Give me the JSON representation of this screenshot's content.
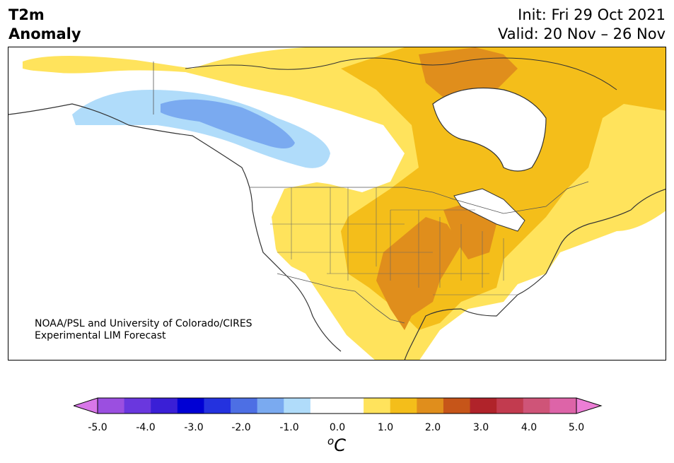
{
  "title": {
    "line1": "T2m",
    "line2": "Anomaly"
  },
  "dates": {
    "init": "Init: Fri 29 Oct 2021",
    "valid": "Valid: 20 Nov – 26 Nov"
  },
  "credit": {
    "line1": "NOAA/PSL and University of Colorado/CIRES",
    "line2": "Experimental LIM Forecast"
  },
  "colorbar": {
    "ticks": [
      "-5.0",
      "-4.0",
      "-3.0",
      "-2.0",
      "-1.0",
      "0.0",
      "1.0",
      "2.0",
      "3.0",
      "4.0",
      "5.0"
    ],
    "unit_sup": "o",
    "unit": "C",
    "colors": [
      "#d877e8",
      "#9b4fe0",
      "#6a37de",
      "#3a1fd6",
      "#0000d4",
      "#2432df",
      "#4d6fe4",
      "#7aaaf0",
      "#b0dcfa",
      "#ffffff",
      "#ffffff",
      "#ffe35c",
      "#f4be1a",
      "#e08e1c",
      "#c65519",
      "#b0232a",
      "#c23b4f",
      "#cf5478",
      "#dd64a8",
      "#ec7ed6"
    ]
  },
  "map": {
    "colors": {
      "cold1": "#b0dcfa",
      "cold2": "#7aaaf0",
      "warm1": "#ffe35c",
      "warm2": "#f4be1a",
      "warm3": "#e08e1c",
      "land_line": "#333333",
      "border": "#555555"
    }
  }
}
